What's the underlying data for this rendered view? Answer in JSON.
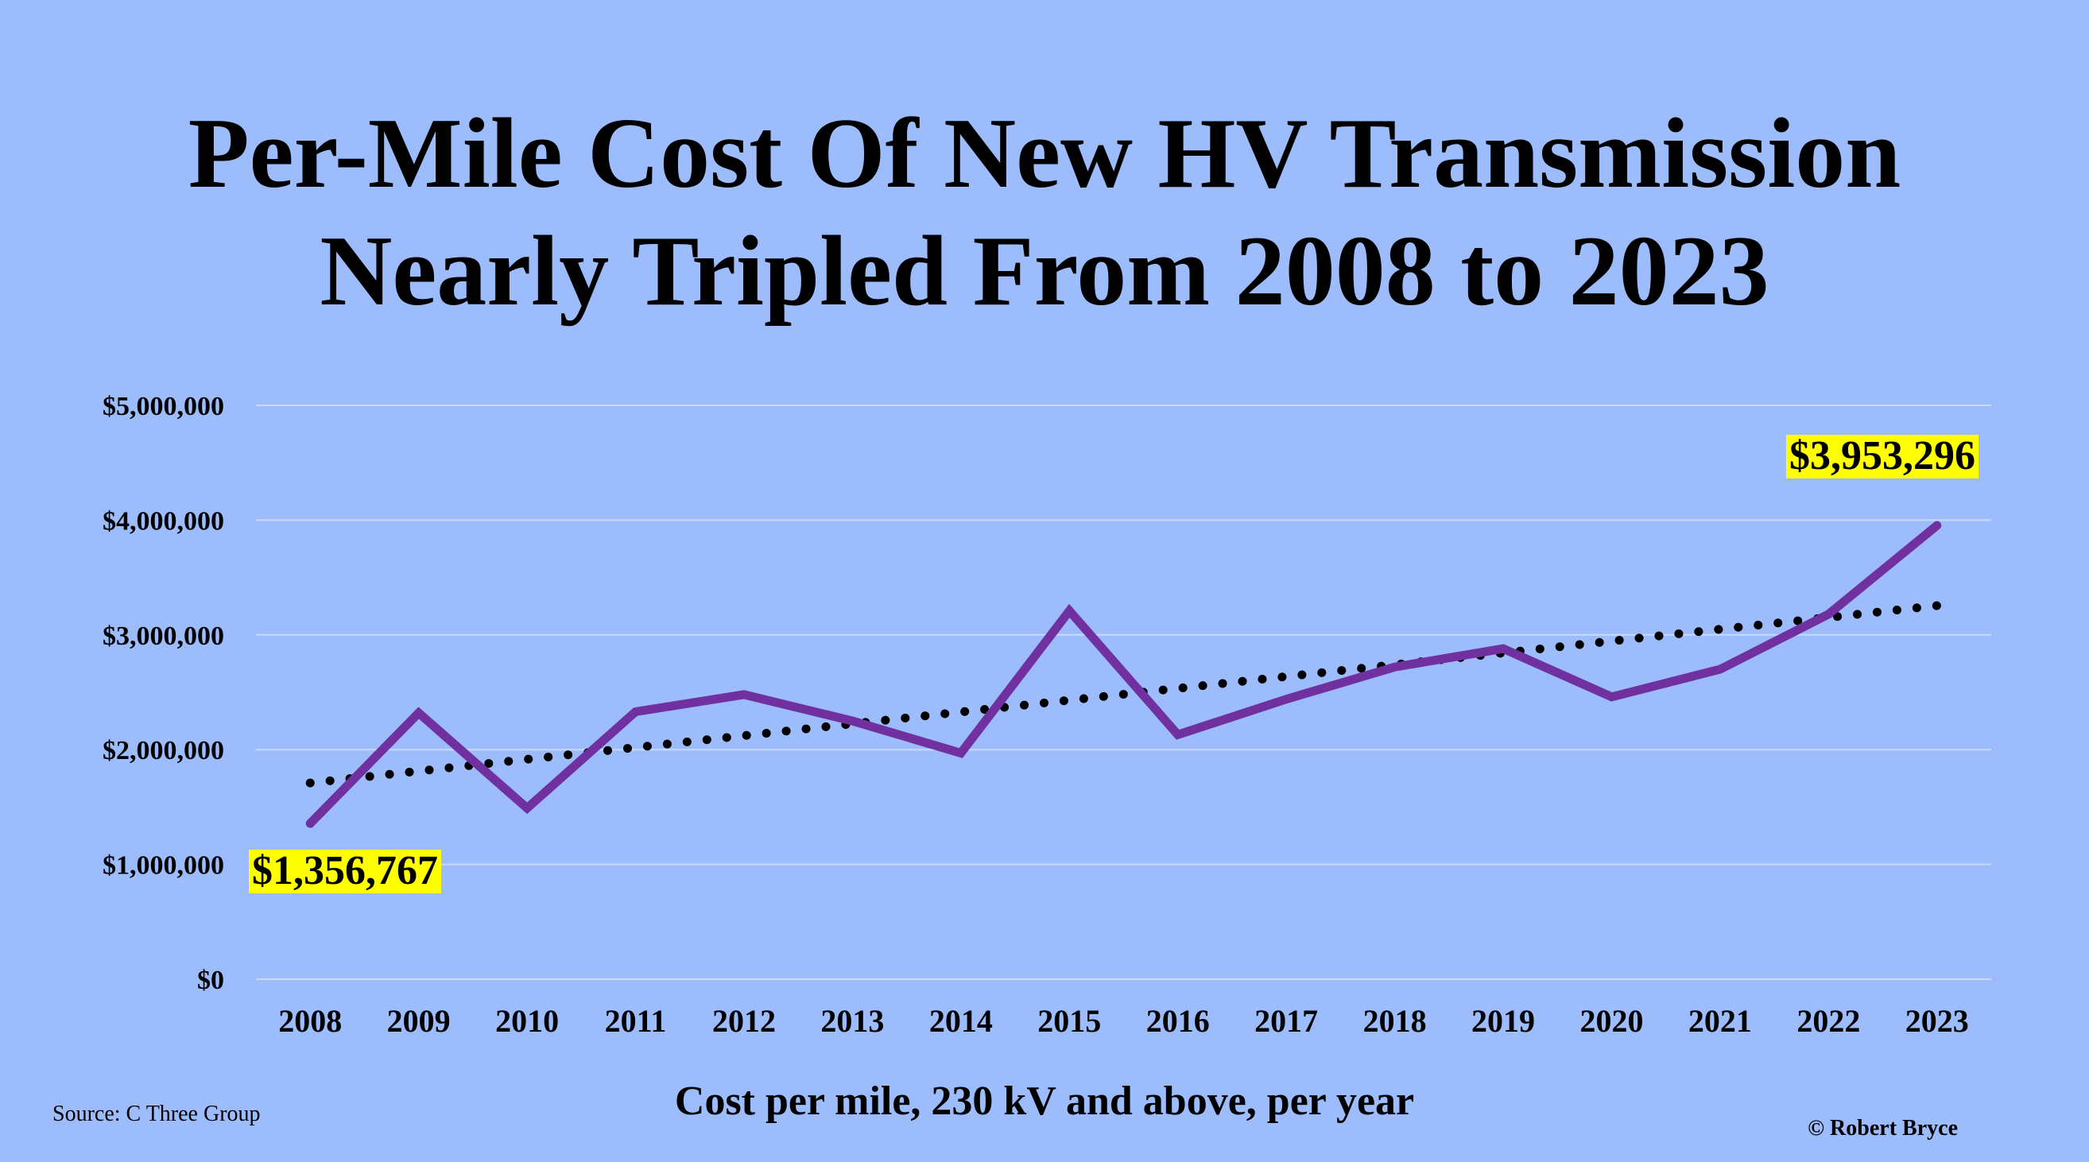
{
  "chart_data": {
    "type": "line",
    "title_lines": [
      "Per-Mile Cost Of New HV Transmission",
      "Nearly Tripled From 2008 to 2023"
    ],
    "xlabel": "Cost per mile, 230 kV and above, per year",
    "ylabel": "",
    "categories": [
      "2008",
      "2009",
      "2010",
      "2011",
      "2012",
      "2013",
      "2014",
      "2015",
      "2016",
      "2017",
      "2018",
      "2019",
      "2020",
      "2021",
      "2022",
      "2023"
    ],
    "ylim": [
      0,
      5000000
    ],
    "yticks": [
      0,
      1000000,
      2000000,
      3000000,
      4000000,
      5000000
    ],
    "ytick_labels": [
      "$0",
      "$1,000,000",
      "$2,000,000",
      "$3,000,000",
      "$4,000,000",
      "$5,000,000"
    ],
    "grid": true,
    "series": [
      {
        "values": [
          1356767,
          2320000,
          1490000,
          2330000,
          2480000,
          2250000,
          1970000,
          3210000,
          2130000,
          2440000,
          2720000,
          2880000,
          2460000,
          2700000,
          3180000,
          3953296
        ],
        "color": "#7030a0",
        "style": "solid"
      },
      {
        "values": [
          1710000,
          1813000,
          1916000,
          2019000,
          2122000,
          2225000,
          2328000,
          2431000,
          2534000,
          2637000,
          2740000,
          2843000,
          2946000,
          3049000,
          3152000,
          3255000
        ],
        "color": "#000000",
        "style": "dotted",
        "kind": "trendline"
      }
    ],
    "data_labels": [
      {
        "category": "2008",
        "text": "$1,356,767",
        "highlight": "#ffff00"
      },
      {
        "category": "2023",
        "text": "$3,953,296",
        "highlight": "#ffff00"
      }
    ]
  },
  "source_note": "Source: C Three Group",
  "credit_note": "© Robert Bryce",
  "colors": {
    "background": "#9dbcfc",
    "gridline": "#c9daf8"
  }
}
